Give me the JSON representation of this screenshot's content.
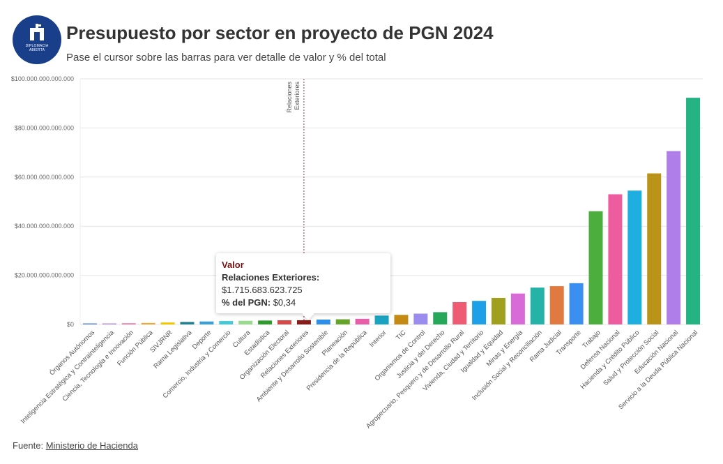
{
  "logo": {
    "text_line1": "DIPLOMACIA",
    "text_line2": "ABIERTA"
  },
  "header": {
    "title": "Presupuesto por sector en proyecto de PGN 2024",
    "subtitle": "Pase el cursor sobre las barras para ver detalle de valor y % del total"
  },
  "footer": {
    "source_label": "Fuente:",
    "source_link": "Ministerio de Hacienda"
  },
  "tooltip": {
    "heading": "Valor",
    "sector": "Relaciones Exteriores:",
    "value": "$1.715.683.623.725",
    "pct_label": "% del PGN:",
    "pct_value": "$0,34"
  },
  "chart_data": {
    "type": "bar",
    "ylim": [
      0,
      100000000000000
    ],
    "yticks": [
      {
        "value": 0,
        "label": "$0"
      },
      {
        "value": 20000000000000,
        "label": "$20.000.000.000.000"
      },
      {
        "value": 40000000000000,
        "label": "$40.000.000.000.000"
      },
      {
        "value": 60000000000000,
        "label": "$60.000.000.000.000"
      },
      {
        "value": 80000000000000,
        "label": "$80.000.000.000.000"
      },
      {
        "value": 100000000000000,
        "label": "$100.000.000.000.000"
      }
    ],
    "grid": true,
    "highlight": {
      "category": "Relaciones Exteriores",
      "label": "Relaciones Exteriores"
    },
    "categories": [
      "Órganos Autónomos",
      "Inteligencia Estratégica y Contrainteligencia",
      "Ciencia, Tecnología e Innovación",
      "Función Pública",
      "SIVJRNR",
      "Rama Legislativa",
      "Deporte",
      "Comercio, Industria y Comercio",
      "Cultura",
      "Estadística",
      "Organización Electoral",
      "Relaciones Exteriores",
      "Ambiente y Desarrollo Sostenible",
      "Planeación",
      "Presidencia de la República",
      "Interior",
      "TIC",
      "Organismos de Control",
      "Justicia y del Derecho",
      "Agropecuario, Pesquero y de Desarrollo Rural",
      "Vivienda, Ciudad y Territorio",
      "Igualdad y Equidad",
      "Minas y Energía",
      "Inclusión Social y Reconciliación",
      "Rama Judicial",
      "Transporte",
      "Trabajo",
      "Defensa Nacional",
      "Hacienda y Crédito Público",
      "Salud y Protección Social",
      "Educación Nacional",
      "Servicio a la Deuda Pública Nacional"
    ],
    "values": [
      100000000000,
      200000000000,
      500000000000,
      600000000000,
      800000000000,
      1000000000000,
      1200000000000,
      1400000000000,
      1500000000000,
      1600000000000,
      1700000000000,
      1715683623725,
      2000000000000,
      2100000000000,
      2300000000000,
      3600000000000,
      3900000000000,
      4400000000000,
      5000000000000,
      9100000000000,
      9600000000000,
      10800000000000,
      12600000000000,
      15000000000000,
      15600000000000,
      16800000000000,
      46100000000000,
      53000000000000,
      54500000000000,
      61500000000000,
      70600000000000,
      92300000000000
    ],
    "colors": [
      "#5b87d6",
      "#b58fd9",
      "#f07aa6",
      "#f0a830",
      "#f2c700",
      "#1e7f8e",
      "#3b9fd8",
      "#45c9d6",
      "#9ad98f",
      "#2e9b2e",
      "#d94848",
      "#8b1a1a",
      "#2f8ee8",
      "#66a32a",
      "#e85ca8",
      "#19a3c0",
      "#c58a14",
      "#9b8cf0",
      "#25a85a",
      "#ee5b73",
      "#1ea0e8",
      "#a0a01e",
      "#d96bd9",
      "#25b3a8",
      "#e07a40",
      "#3a8ff0",
      "#4cae3c",
      "#ee5ca0",
      "#1eaedf",
      "#b99418",
      "#b07ee8",
      "#25b383"
    ]
  }
}
